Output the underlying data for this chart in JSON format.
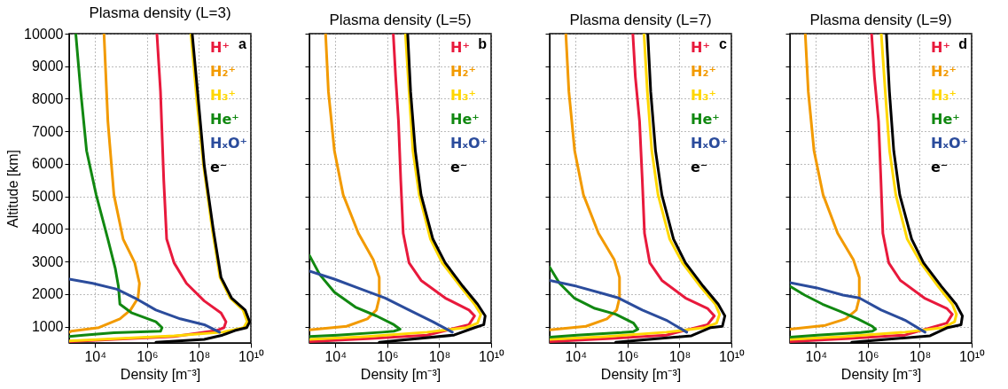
{
  "chart_data": [
    {
      "type": "line",
      "title": "Plasma density (L=3)",
      "xlabel": "Density [m⁻³]",
      "ylabel": "Altitude [km]",
      "log": "x",
      "grid": true,
      "legend": "top right",
      "annotations": [
        "a"
      ],
      "xlim": [
        1000,
        10000000000
      ],
      "ylim": [
        500,
        10000
      ],
      "xticks": [
        {
          "value": 10000,
          "label": "10⁴"
        },
        {
          "value": 1000000,
          "label": "10⁶"
        },
        {
          "value": 100000000,
          "label": "10⁸"
        },
        {
          "value": 10000000000,
          "label": "10¹⁰"
        }
      ],
      "yticks": [
        1000,
        2000,
        3000,
        4000,
        5000,
        6000,
        7000,
        8000,
        9000,
        10000
      ],
      "series": [
        {
          "name": "H⁺",
          "color": "#e8193c",
          "x": [
            2400000.0,
            3300000.0,
            4400000.0,
            5700000.0,
            11000000.0,
            33000000.0,
            160000000.0,
            710000000.0,
            1100000000.0,
            920000000.0,
            470000000.0,
            11000000.0,
            52000.0,
            1000
          ],
          "values": [
            10000,
            8220,
            5500,
            3690,
            2960,
            2330,
            1790,
            1420,
            1150,
            970,
            880,
            700,
            610,
            540
          ]
        },
        {
          "name": "H₂⁺",
          "color": "#f29a00",
          "x": [
            22000.0,
            31000.0,
            53000.0,
            120000.0,
            340000.0,
            510000.0,
            450000.0,
            230000.0,
            90000.0,
            14000.0,
            1200.0,
            1000
          ],
          "values": [
            10000,
            7310,
            5050,
            3690,
            2960,
            2330,
            1880,
            1510,
            1240,
            970,
            860,
            830
          ]
        },
        {
          "name": "H₃⁺",
          "color": "#ffd700",
          "x": [
            49000000.0,
            83000000.0,
            150000000.0,
            330000000.0,
            650000000.0,
            1600000000.0,
            5000000000.0,
            7200000000.0,
            5300000000.0,
            810000000.0,
            11000000.0,
            1000
          ],
          "values": [
            10000,
            7940,
            5950,
            3960,
            2510,
            1880,
            1510,
            1150,
            970,
            830,
            720,
            560
          ]
        },
        {
          "name": "He⁺",
          "color": "#118811",
          "x": [
            1800.0,
            2800.0,
            4700.0,
            11000.0,
            31000.0,
            60000.0,
            79000.0,
            90000.0,
            260000.0,
            2200000.0,
            3800000.0,
            3300000.0,
            53000.0,
            3600.0,
            1000
          ],
          "values": [
            10000,
            8220,
            6400,
            5050,
            3690,
            2780,
            2240,
            1690,
            1420,
            1150,
            970,
            860,
            810,
            740,
            700
          ]
        },
        {
          "name": "HₓO⁺",
          "color": "#2b4c9c",
          "x": [
            1000,
            8100.0,
            69000.0,
            340000.0,
            2200000.0,
            19000000.0,
            160000000.0,
            620000000.0
          ],
          "values": [
            2460,
            2330,
            2150,
            1880,
            1510,
            1240,
            1060,
            830
          ]
        },
        {
          "name": "e⁻",
          "color": "#000000",
          "x": [
            55000000.0,
            95000000.0,
            160000000.0,
            360000000.0,
            710000000.0,
            1800000000.0,
            6000000000.0,
            9000000000.0,
            6900000000.0,
            2400000000.0,
            810000000.0,
            160000000.0,
            2200000.0
          ],
          "values": [
            10000,
            7940,
            5950,
            3960,
            2510,
            1880,
            1510,
            1150,
            970,
            880,
            740,
            610,
            520
          ]
        }
      ]
    },
    {
      "type": "line",
      "title": "Plasma density (L=5)",
      "xlabel": "Density [m⁻³]",
      "log": "x",
      "grid": true,
      "legend": "top right",
      "annotations": [
        "b"
      ],
      "tick_labels": "x",
      "xlim": [
        1000,
        10000000000
      ],
      "ylim": [
        500,
        10000
      ],
      "xticks": [
        {
          "value": 10000,
          "label": "10⁴"
        },
        {
          "value": 1000000,
          "label": "10⁶"
        },
        {
          "value": 100000000,
          "label": "10⁸"
        },
        {
          "value": 10000000000,
          "label": "10¹⁰"
        }
      ],
      "yticks": [
        1000,
        2000,
        3000,
        4000,
        5000,
        6000,
        7000,
        8000,
        9000,
        10000
      ],
      "series": [
        {
          "name": "H⁺",
          "color": "#e8193c",
          "x": [
            1700000.0,
            2100000.0,
            2700000.0,
            3300000.0,
            4100000.0,
            6900000.0,
            20000000.0,
            170000000.0,
            1400000000.0,
            2300000000.0,
            1400000000.0,
            34000000.0,
            170000.0,
            1000
          ],
          "values": [
            10000,
            8670,
            7310,
            5500,
            3870,
            2960,
            2420,
            1880,
            1510,
            1330,
            1060,
            740,
            630,
            540
          ]
        },
        {
          "name": "H₂⁺",
          "color": "#f29a00",
          "x": [
            4200.0,
            5400.0,
            9200.0,
            20000.0,
            77000.0,
            290000.0,
            490000.0,
            490000.0,
            380000.0,
            170000.0,
            27000.0,
            1000
          ],
          "values": [
            10000,
            8220,
            6400,
            5050,
            3870,
            3050,
            2510,
            1880,
            1510,
            1240,
            1010,
            900
          ]
        },
        {
          "name": "H₃⁺",
          "color": "#ffd700",
          "x": [
            5000000.0,
            6900000.0,
            9700000.0,
            17000000.0,
            46000000.0,
            130000000.0,
            650000000.0,
            2300000000.0,
            4000000000.0,
            3000000000.0,
            1100000000.0,
            34000000.0,
            170000.0,
            1000
          ],
          "values": [
            10000,
            8220,
            6400,
            5050,
            3690,
            2960,
            2240,
            1690,
            1380,
            1110,
            970,
            830,
            700,
            610
          ]
        },
        {
          "name": "He⁺",
          "color": "#118811",
          "x": [
            1000,
            2500.0,
            9200.0,
            59000.0,
            380000.0,
            1800000.0,
            3100000.0,
            1800000.0,
            640000.0,
            12000.0,
            1000
          ],
          "values": [
            3190,
            2600,
            2060,
            1600,
            1330,
            1060,
            920,
            860,
            830,
            740,
            700
          ]
        },
        {
          "name": "HₓO⁺",
          "color": "#2b4c9c",
          "x": [
            1000,
            9200.0,
            100000.0,
            830000.0,
            6900000.0,
            57000000.0,
            320000000.0
          ],
          "values": [
            2710,
            2460,
            2150,
            1880,
            1510,
            1150,
            830
          ]
        },
        {
          "name": "e⁻",
          "color": "#000000",
          "x": [
            6100000.0,
            7900000.0,
            12000000.0,
            20000000.0,
            57000000.0,
            170000000.0,
            810000000.0,
            3000000000.0,
            5900000000.0,
            5200000000.0,
            2300000000.0,
            370000000.0,
            490000.0
          ],
          "values": [
            10000,
            8220,
            6400,
            5050,
            3690,
            2960,
            2240,
            1690,
            1330,
            1060,
            970,
            740,
            520
          ]
        }
      ]
    },
    {
      "type": "line",
      "title": "Plasma density (L=7)",
      "xlabel": "Density [m⁻³]",
      "log": "x",
      "grid": true,
      "legend": "top right",
      "annotations": [
        "c"
      ],
      "tick_labels": "x",
      "xlim": [
        1000,
        10000000000
      ],
      "ylim": [
        500,
        10000
      ],
      "xticks": [
        {
          "value": 10000,
          "label": "10⁴"
        },
        {
          "value": 1000000,
          "label": "10⁶"
        },
        {
          "value": 100000000,
          "label": "10⁸"
        },
        {
          "value": 10000000000,
          "label": "10¹⁰"
        }
      ],
      "yticks": [
        1000,
        2000,
        3000,
        4000,
        5000,
        6000,
        7000,
        8000,
        9000,
        10000
      ],
      "series": [
        {
          "name": "H⁺",
          "color": "#e8193c",
          "x": [
            1600000.0,
            2000000.0,
            2900000.0,
            3700000.0,
            4500000.0,
            7200000.0,
            21000000.0,
            170000000.0,
            1200000000.0,
            2200000000.0,
            1200000000.0,
            31000000.0,
            160000.0,
            1000
          ],
          "values": [
            10000,
            8670,
            7310,
            5500,
            3870,
            2960,
            2420,
            1880,
            1560,
            1330,
            1060,
            740,
            630,
            540
          ]
        },
        {
          "name": "H₂⁺",
          "color": "#f29a00",
          "x": [
            4200.0,
            5500.0,
            9200.0,
            20000.0,
            76000.0,
            310000.0,
            490000.0,
            490000.0,
            380000.0,
            160000.0,
            25000.0,
            1000
          ],
          "values": [
            10000,
            8220,
            6400,
            5050,
            3870,
            3050,
            2510,
            1880,
            1510,
            1240,
            1010,
            900
          ]
        },
        {
          "name": "H₃⁺",
          "color": "#ffd700",
          "x": [
            4300000.0,
            5800000.0,
            8600000.0,
            15000000.0,
            42000000.0,
            130000000.0,
            630000000.0,
            2400000000.0,
            3500000000.0,
            2700000000.0,
            940000000.0,
            31000000.0,
            160000.0,
            1000
          ],
          "values": [
            10000,
            8220,
            6400,
            5050,
            3690,
            2960,
            2240,
            1690,
            1380,
            1110,
            970,
            830,
            700,
            610
          ]
        },
        {
          "name": "He⁺",
          "color": "#118811",
          "x": [
            1000,
            2400.0,
            8800.0,
            55000.0,
            350000.0,
            1700000.0,
            2500000.0,
            1700000.0,
            590000.0,
            11000.0,
            1000
          ],
          "values": [
            2830,
            2330,
            1880,
            1560,
            1380,
            1110,
            920,
            850,
            820,
            740,
            680
          ]
        },
        {
          "name": "HₓO⁺",
          "color": "#2b4c9c",
          "x": [
            1000,
            11000.0,
            120000.0,
            450000.0,
            3700000.0,
            31000000.0,
            190000000.0
          ],
          "values": [
            2420,
            2240,
            2010,
            1880,
            1510,
            1200,
            830
          ]
        },
        {
          "name": "e⁻",
          "color": "#000000",
          "x": [
            6000000.0,
            7800000.0,
            12000000.0,
            21000000.0,
            59000000.0,
            170000000.0,
            820000000.0,
            3100000000.0,
            5600000000.0,
            4500000000.0,
            1600000000.0,
            290000000.0,
            350000.0
          ],
          "values": [
            10000,
            8220,
            6400,
            5050,
            3690,
            2960,
            2240,
            1690,
            1330,
            1010,
            970,
            720,
            520
          ]
        }
      ]
    },
    {
      "type": "line",
      "title": "Plasma density (L=9)",
      "xlabel": "Density [m⁻³]",
      "log": "x",
      "grid": true,
      "legend": "top right",
      "annotations": [
        "d"
      ],
      "tick_labels": "x",
      "xlim": [
        1000,
        10000000000
      ],
      "ylim": [
        500,
        10000
      ],
      "xticks": [
        {
          "value": 10000,
          "label": "10⁴"
        },
        {
          "value": 1000000,
          "label": "10⁶"
        },
        {
          "value": 100000000,
          "label": "10⁸"
        },
        {
          "value": 10000000000,
          "label": "10¹⁰"
        }
      ],
      "yticks": [
        1000,
        2000,
        3000,
        4000,
        5000,
        6000,
        7000,
        8000,
        9000,
        10000
      ],
      "series": [
        {
          "name": "H⁺",
          "color": "#e8193c",
          "x": [
            1400000.0,
            1800000.0,
            2600000.0,
            3200000.0,
            3800000.0,
            6400000.0,
            18000000.0,
            150000000.0,
            1100000000.0,
            1800000000.0,
            1100000000.0,
            27000000.0,
            140000.0,
            1000
          ],
          "values": [
            10000,
            8670,
            7310,
            5500,
            3870,
            2960,
            2420,
            1880,
            1560,
            1380,
            1110,
            740,
            630,
            540
          ]
        },
        {
          "name": "H₂⁺",
          "color": "#f29a00",
          "x": [
            3900.0,
            5100.0,
            8500.0,
            19000.0,
            69000.0,
            280000.0,
            470000.0,
            470000.0,
            360000.0,
            140000.0,
            23000.0,
            1000
          ],
          "values": [
            10000,
            8220,
            6400,
            5050,
            3870,
            3050,
            2510,
            1880,
            1510,
            1240,
            1040,
            920
          ]
        },
        {
          "name": "H₃⁺",
          "color": "#ffd700",
          "x": [
            3300000.0,
            4700000.0,
            6900000.0,
            12000000.0,
            33000000.0,
            110000000.0,
            510000000.0,
            1800000000.0,
            2600000000.0,
            2200000000.0,
            810000000.0,
            27000000.0,
            140000.0,
            1000
          ],
          "values": [
            10000,
            8220,
            6400,
            5050,
            3690,
            2960,
            2240,
            1690,
            1380,
            1150,
            970,
            830,
            700,
            610
          ]
        },
        {
          "name": "He⁺",
          "color": "#118811",
          "x": [
            1000,
            3700.0,
            18000.0,
            86000.0,
            410000.0,
            1500000.0,
            2000000.0,
            1500000.0,
            530000.0,
            11000.0,
            1000
          ],
          "values": [
            2240,
            1970,
            1690,
            1470,
            1240,
            1010,
            920,
            860,
            820,
            740,
            680
          ]
        },
        {
          "name": "HₓO⁺",
          "color": "#2b4c9c",
          "x": [
            1000,
            11000.0,
            110000.0,
            470000.0,
            3300000.0,
            27000000.0,
            160000000.0
          ],
          "values": [
            2350,
            2190,
            1970,
            1880,
            1510,
            1200,
            830
          ]
        },
        {
          "name": "e⁻",
          "color": "#000000",
          "x": [
            5200000.0,
            6800000.0,
            10000000.0,
            17000000.0,
            49000000.0,
            140000000.0,
            680000000.0,
            2500000000.0,
            4400000000.0,
            3900000000.0,
            1200000000.0,
            250000000.0,
            240000.0
          ],
          "values": [
            10000,
            8220,
            6400,
            5050,
            3690,
            2960,
            2240,
            1690,
            1330,
            1060,
            970,
            720,
            520
          ]
        }
      ]
    }
  ]
}
